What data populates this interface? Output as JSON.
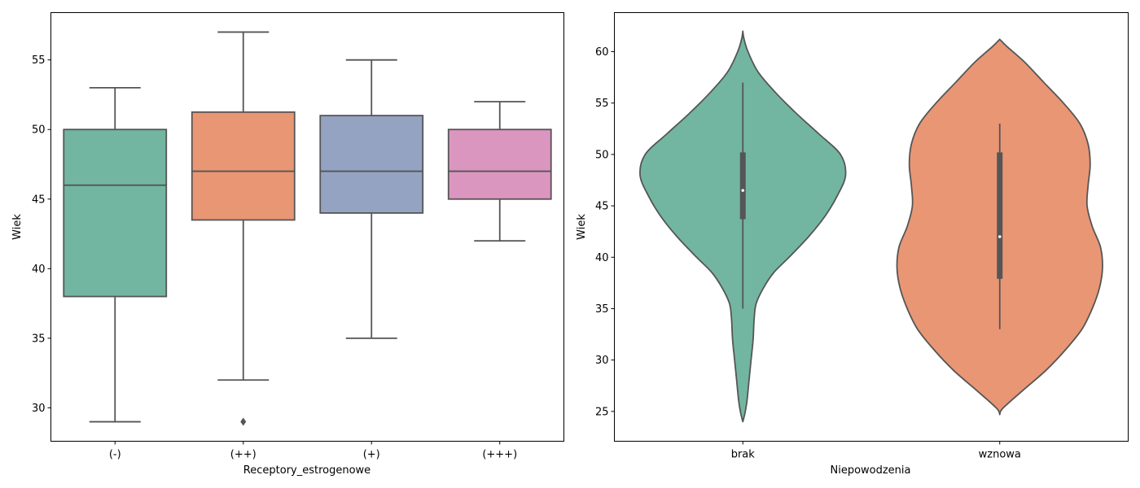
{
  "chart_data": [
    {
      "type": "box",
      "xlabel": "Receptory_estrogenowe",
      "ylabel": "Wiek",
      "categories": [
        "(-)",
        "(++)",
        "(+)",
        "(+++)"
      ],
      "ylim": [
        27.6,
        58.4
      ],
      "yticks": [
        30,
        35,
        40,
        45,
        50,
        55
      ],
      "boxes": [
        {
          "category": "(-)",
          "whislo": 29,
          "q1": 38,
          "med": 46,
          "q3": 50,
          "whishi": 53,
          "fliers": [],
          "color": "#72b6a1"
        },
        {
          "category": "(++)",
          "whislo": 32,
          "q1": 43.5,
          "med": 47,
          "q3": 51.25,
          "whishi": 57,
          "fliers": [
            29
          ],
          "color": "#e99675"
        },
        {
          "category": "(+)",
          "whislo": 35,
          "q1": 44,
          "med": 47,
          "q3": 51,
          "whishi": 55,
          "fliers": [],
          "color": "#95a3c3"
        },
        {
          "category": "(+++)",
          "whislo": 42,
          "q1": 45,
          "med": 47,
          "q3": 50,
          "whishi": 52,
          "fliers": [],
          "color": "#db96c0"
        }
      ]
    },
    {
      "type": "violin",
      "xlabel": "Niepowodzenia",
      "ylabel": "Wiek",
      "categories": [
        "brak",
        "wznowa"
      ],
      "ylim": [
        22.1,
        63.8
      ],
      "yticks": [
        25,
        30,
        35,
        40,
        45,
        50,
        55,
        60
      ],
      "violins": [
        {
          "category": "brak",
          "color": "#72b6a1",
          "whislo": 35,
          "q1": 43.7,
          "med": 46.5,
          "q3": 50.2,
          "whishi": 57,
          "density_profile": [
            [
              24.0,
              0.0
            ],
            [
              24.8,
              0.02
            ],
            [
              26,
              0.04
            ],
            [
              28,
              0.06
            ],
            [
              30,
              0.08
            ],
            [
              32,
              0.1
            ],
            [
              34,
              0.11
            ],
            [
              35.5,
              0.13
            ],
            [
              37,
              0.2
            ],
            [
              38.5,
              0.3
            ],
            [
              40,
              0.45
            ],
            [
              42,
              0.64
            ],
            [
              44,
              0.8
            ],
            [
              46,
              0.92
            ],
            [
              48,
              1.0
            ],
            [
              50,
              0.95
            ],
            [
              52,
              0.74
            ],
            [
              54,
              0.52
            ],
            [
              56,
              0.32
            ],
            [
              58,
              0.15
            ],
            [
              60,
              0.05
            ],
            [
              61.3,
              0.01
            ],
            [
              62.0,
              0.0
            ]
          ]
        },
        {
          "category": "wznowa",
          "color": "#e99675",
          "whislo": 33,
          "q1": 37.9,
          "med": 42,
          "q3": 50.2,
          "whishi": 53,
          "density_profile": [
            [
              24.7,
              0.0
            ],
            [
              25.3,
              0.03
            ],
            [
              27,
              0.22
            ],
            [
              29,
              0.45
            ],
            [
              31,
              0.64
            ],
            [
              33,
              0.8
            ],
            [
              35,
              0.9
            ],
            [
              37,
              0.97
            ],
            [
              39,
              1.0
            ],
            [
              41,
              0.98
            ],
            [
              43,
              0.9
            ],
            [
              45,
              0.85
            ],
            [
              47,
              0.86
            ],
            [
              49,
              0.88
            ],
            [
              51,
              0.86
            ],
            [
              53,
              0.78
            ],
            [
              55,
              0.62
            ],
            [
              57,
              0.43
            ],
            [
              59,
              0.24
            ],
            [
              60.5,
              0.07
            ],
            [
              61.2,
              0.0
            ]
          ]
        }
      ]
    }
  ]
}
